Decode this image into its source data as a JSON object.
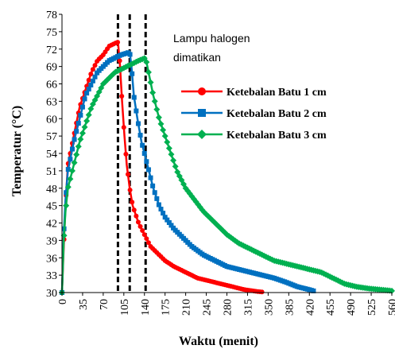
{
  "chart_data": {
    "type": "line",
    "xlabel": "Waktu (menit)",
    "ylabel": "Temperatur (°C)",
    "xlim": [
      0,
      560
    ],
    "ylim": [
      30,
      78
    ],
    "x_ticks": [
      "0",
      "35",
      "70",
      "105",
      "140",
      "175",
      "210",
      "245",
      "280",
      "315",
      "350",
      "385",
      "420",
      "455",
      "490",
      "525",
      "560"
    ],
    "y_ticks": [
      "30",
      "33",
      "36",
      "39",
      "42",
      "45",
      "48",
      "51",
      "54",
      "57",
      "60",
      "63",
      "66",
      "69",
      "72",
      "75",
      "78"
    ],
    "annotation": [
      "Lampu halogen",
      "dimatikan"
    ],
    "vlines": [
      95,
      115,
      142
    ],
    "legend_position": "right",
    "series": [
      {
        "name": "Ketebalan Batu 1 cm",
        "color": "#ff0000",
        "marker": "circle",
        "points": [
          [
            0,
            30
          ],
          [
            3,
            38
          ],
          [
            6,
            45
          ],
          [
            10,
            52
          ],
          [
            20,
            57
          ],
          [
            30,
            62
          ],
          [
            40,
            65
          ],
          [
            50,
            68
          ],
          [
            60,
            70
          ],
          [
            70,
            71
          ],
          [
            80,
            72.5
          ],
          [
            90,
            73
          ],
          [
            95,
            73.2
          ],
          [
            98,
            70
          ],
          [
            102,
            63
          ],
          [
            106,
            57
          ],
          [
            110,
            52
          ],
          [
            115,
            48
          ],
          [
            120,
            45
          ],
          [
            130,
            42
          ],
          [
            140,
            40
          ],
          [
            150,
            38
          ],
          [
            160,
            37
          ],
          [
            175,
            35.5
          ],
          [
            190,
            34.5
          ],
          [
            210,
            33.5
          ],
          [
            230,
            32.5
          ],
          [
            250,
            32
          ],
          [
            270,
            31.5
          ],
          [
            290,
            31
          ],
          [
            310,
            30.5
          ],
          [
            330,
            30.2
          ],
          [
            340,
            30.1
          ]
        ]
      },
      {
        "name": "Ketebalan Batu 2 cm",
        "color": "#0070c0",
        "marker": "square",
        "points": [
          [
            0,
            30
          ],
          [
            3,
            40
          ],
          [
            6,
            46
          ],
          [
            10,
            51
          ],
          [
            20,
            56
          ],
          [
            30,
            60
          ],
          [
            40,
            64
          ],
          [
            50,
            66
          ],
          [
            60,
            68
          ],
          [
            70,
            69
          ],
          [
            80,
            70
          ],
          [
            90,
            70.5
          ],
          [
            100,
            71
          ],
          [
            110,
            71.3
          ],
          [
            115,
            71.5
          ],
          [
            118,
            69
          ],
          [
            122,
            64
          ],
          [
            128,
            60
          ],
          [
            135,
            56
          ],
          [
            145,
            52
          ],
          [
            155,
            48
          ],
          [
            165,
            45
          ],
          [
            175,
            43
          ],
          [
            190,
            41
          ],
          [
            205,
            39.5
          ],
          [
            220,
            38
          ],
          [
            240,
            36.5
          ],
          [
            260,
            35.5
          ],
          [
            280,
            34.5
          ],
          [
            300,
            34
          ],
          [
            320,
            33.5
          ],
          [
            340,
            33
          ],
          [
            360,
            32.5
          ],
          [
            380,
            31.8
          ],
          [
            400,
            31
          ],
          [
            420,
            30.5
          ],
          [
            430,
            30.2
          ]
        ]
      },
      {
        "name": "Ketebalan Batu 3 cm",
        "color": "#00b050",
        "marker": "diamond",
        "points": [
          [
            0,
            30
          ],
          [
            3,
            39
          ],
          [
            6,
            44
          ],
          [
            10,
            48
          ],
          [
            20,
            52
          ],
          [
            30,
            56
          ],
          [
            40,
            59
          ],
          [
            50,
            62
          ],
          [
            60,
            64
          ],
          [
            70,
            66
          ],
          [
            80,
            67
          ],
          [
            90,
            68
          ],
          [
            100,
            68.5
          ],
          [
            110,
            69
          ],
          [
            120,
            69.5
          ],
          [
            130,
            70
          ],
          [
            142,
            70.5
          ],
          [
            147,
            68
          ],
          [
            155,
            64
          ],
          [
            165,
            60
          ],
          [
            175,
            57
          ],
          [
            185,
            54
          ],
          [
            195,
            51
          ],
          [
            210,
            48
          ],
          [
            225,
            46
          ],
          [
            240,
            44
          ],
          [
            260,
            42
          ],
          [
            280,
            40
          ],
          [
            300,
            38.5
          ],
          [
            320,
            37.5
          ],
          [
            340,
            36.5
          ],
          [
            360,
            35.5
          ],
          [
            380,
            35
          ],
          [
            400,
            34.5
          ],
          [
            420,
            34
          ],
          [
            440,
            33.5
          ],
          [
            460,
            32.5
          ],
          [
            480,
            31.5
          ],
          [
            500,
            31
          ],
          [
            520,
            30.7
          ],
          [
            540,
            30.5
          ],
          [
            560,
            30.3
          ]
        ]
      }
    ]
  }
}
